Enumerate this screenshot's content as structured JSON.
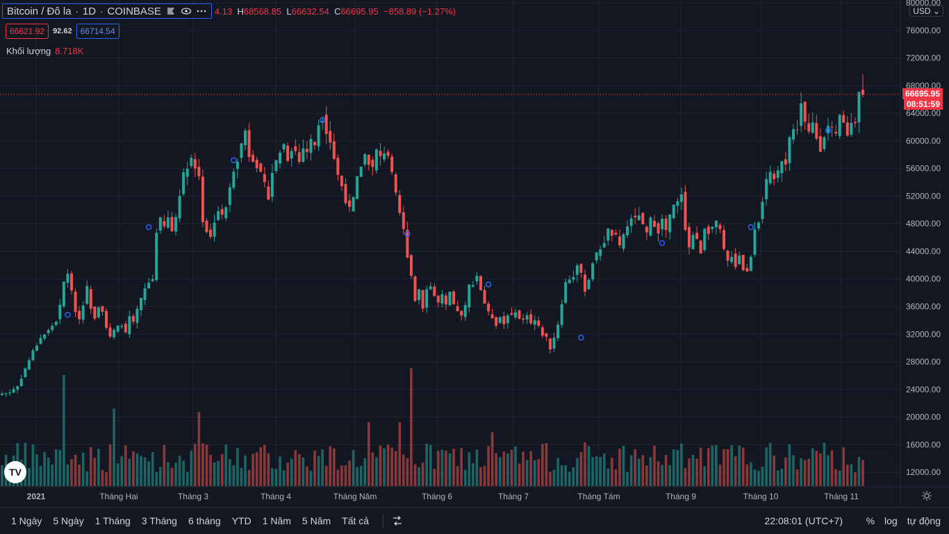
{
  "legend": {
    "symbol": "Bitcoin / Đô la",
    "interval": "1D",
    "exchange": "COINBASE",
    "open_tail": "4.13",
    "high_label": "H",
    "high": "68568.85",
    "low_label": "L",
    "low": "66632.54",
    "close_label": "C",
    "close": "66695.95",
    "change": "−858.89 (−1.27%)",
    "bid": "66621.92",
    "spread": "92.62",
    "ask": "66714.54",
    "volume_label": "Khối lượng",
    "volume_value": "8.718K"
  },
  "currency": "USD",
  "last_price_badge": "66695.95",
  "countdown": "08:51:59",
  "range_buttons": [
    "1 Ngày",
    "5 Ngày",
    "1 Tháng",
    "3 Tháng",
    "6 tháng",
    "YTD",
    "1 Năm",
    "5 Năm",
    "Tất cả"
  ],
  "clock": "22:08:01 (UTC+7)",
  "scale_buttons": {
    "percent": "%",
    "log": "log",
    "auto": "tự động"
  },
  "colors": {
    "up": "#26a69a",
    "down": "#ef5350",
    "bg": "#131722",
    "grid": "#1f2430",
    "accent": "#2962ff"
  },
  "chart_data": {
    "type": "candlestick",
    "y_ticks": [
      "80000.00",
      "76000.00",
      "72000.00",
      "68000.00",
      "64000.00",
      "60000.00",
      "56000.00",
      "52000.00",
      "48000.00",
      "44000.00",
      "40000.00",
      "36000.00",
      "32000.00",
      "28000.00",
      "24000.00",
      "20000.00",
      "16000.00",
      "12000.00"
    ],
    "ylim": [
      10000,
      80000
    ],
    "x_ticks": [
      "2021",
      "Tháng Hai",
      "Tháng 3",
      "Tháng 4",
      "Tháng Năm",
      "Tháng 6",
      "Tháng 7",
      "Tháng Tám",
      "Tháng 9",
      "Tháng 10",
      "Tháng 11"
    ],
    "last_price": 66695.95,
    "anchors": [
      [
        0,
        23400
      ],
      [
        2,
        23600
      ],
      [
        4,
        24500
      ],
      [
        6,
        27000
      ],
      [
        8,
        29500
      ],
      [
        10,
        31500
      ],
      [
        12,
        32500
      ],
      [
        14,
        34000
      ],
      [
        15,
        36000
      ],
      [
        16,
        39500
      ],
      [
        17,
        41000
      ],
      [
        18,
        38000
      ],
      [
        19,
        35500
      ],
      [
        20,
        34200
      ],
      [
        21,
        36500
      ],
      [
        22,
        38700
      ],
      [
        23,
        36000
      ],
      [
        24,
        34500
      ],
      [
        25,
        36200
      ],
      [
        26,
        35500
      ],
      [
        27,
        33000
      ],
      [
        28,
        31500
      ],
      [
        29,
        32500
      ],
      [
        30,
        33000
      ],
      [
        31,
        33500
      ],
      [
        32,
        32000
      ],
      [
        33,
        34500
      ],
      [
        34,
        33500
      ],
      [
        35,
        35500
      ],
      [
        36,
        37000
      ],
      [
        37,
        38500
      ],
      [
        38,
        39500
      ],
      [
        39,
        40000
      ],
      [
        40,
        47000
      ],
      [
        41,
        48500
      ],
      [
        42,
        47500
      ],
      [
        43,
        48800
      ],
      [
        44,
        47000
      ],
      [
        45,
        49000
      ],
      [
        46,
        52500
      ],
      [
        47,
        55000
      ],
      [
        48,
        56500
      ],
      [
        49,
        57500
      ],
      [
        50,
        56000
      ],
      [
        51,
        55000
      ],
      [
        52,
        48500
      ],
      [
        53,
        47000
      ],
      [
        54,
        46000
      ],
      [
        55,
        48500
      ],
      [
        56,
        50000
      ],
      [
        57,
        49000
      ],
      [
        58,
        50500
      ],
      [
        59,
        53000
      ],
      [
        60,
        56000
      ],
      [
        61,
        57500
      ],
      [
        62,
        59500
      ],
      [
        63,
        61500
      ],
      [
        64,
        58000
      ],
      [
        65,
        57500
      ],
      [
        66,
        56500
      ],
      [
        67,
        55000
      ],
      [
        68,
        53500
      ],
      [
        69,
        52000
      ],
      [
        70,
        55500
      ],
      [
        71,
        57000
      ],
      [
        72,
        58500
      ],
      [
        73,
        59500
      ],
      [
        74,
        57500
      ],
      [
        75,
        59000
      ],
      [
        76,
        58500
      ],
      [
        77,
        57000
      ],
      [
        78,
        59000
      ],
      [
        79,
        58500
      ],
      [
        80,
        60000
      ],
      [
        81,
        59500
      ],
      [
        82,
        62500
      ],
      [
        83,
        63500
      ],
      [
        84,
        61500
      ],
      [
        85,
        60000
      ],
      [
        86,
        57500
      ],
      [
        87,
        55000
      ],
      [
        88,
        53500
      ],
      [
        89,
        51500
      ],
      [
        90,
        50000
      ],
      [
        91,
        51500
      ],
      [
        92,
        54500
      ],
      [
        93,
        56500
      ],
      [
        94,
        58000
      ],
      [
        95,
        57000
      ],
      [
        96,
        56000
      ],
      [
        97,
        58500
      ],
      [
        98,
        57500
      ],
      [
        99,
        58500
      ],
      [
        100,
        58000
      ],
      [
        101,
        55000
      ],
      [
        102,
        52000
      ],
      [
        103,
        49500
      ],
      [
        104,
        47000
      ],
      [
        105,
        43500
      ],
      [
        106,
        40500
      ],
      [
        107,
        37000
      ],
      [
        108,
        38500
      ],
      [
        109,
        36000
      ],
      [
        110,
        38500
      ],
      [
        111,
        39000
      ],
      [
        112,
        37500
      ],
      [
        113,
        36500
      ],
      [
        114,
        37500
      ],
      [
        115,
        36000
      ],
      [
        116,
        38000
      ],
      [
        117,
        36000
      ],
      [
        118,
        35500
      ],
      [
        119,
        34500
      ],
      [
        120,
        36000
      ],
      [
        121,
        39000
      ],
      [
        122,
        39500
      ],
      [
        123,
        40500
      ],
      [
        124,
        38500
      ],
      [
        125,
        36500
      ],
      [
        126,
        35000
      ],
      [
        127,
        34500
      ],
      [
        128,
        33500
      ],
      [
        129,
        34500
      ],
      [
        130,
        33500
      ],
      [
        131,
        35000
      ],
      [
        132,
        34500
      ],
      [
        133,
        35500
      ],
      [
        134,
        34200
      ],
      [
        135,
        34000
      ],
      [
        136,
        35000
      ],
      [
        137,
        33500
      ],
      [
        138,
        34000
      ],
      [
        139,
        33000
      ],
      [
        140,
        32000
      ],
      [
        141,
        31500
      ],
      [
        142,
        30000
      ],
      [
        143,
        31500
      ],
      [
        144,
        33500
      ],
      [
        145,
        36500
      ],
      [
        146,
        39500
      ],
      [
        147,
        40000
      ],
      [
        148,
        40500
      ],
      [
        149,
        42000
      ],
      [
        150,
        40500
      ],
      [
        151,
        38500
      ],
      [
        152,
        40000
      ],
      [
        153,
        42500
      ],
      [
        154,
        43500
      ],
      [
        155,
        44500
      ],
      [
        156,
        45500
      ],
      [
        157,
        47000
      ],
      [
        158,
        46500
      ],
      [
        159,
        46000
      ],
      [
        160,
        44500
      ],
      [
        161,
        46500
      ],
      [
        162,
        47500
      ],
      [
        163,
        49000
      ],
      [
        164,
        48500
      ],
      [
        165,
        49500
      ],
      [
        166,
        47500
      ],
      [
        167,
        46500
      ],
      [
        168,
        48500
      ],
      [
        169,
        48000
      ],
      [
        170,
        47000
      ],
      [
        171,
        48500
      ],
      [
        172,
        47000
      ],
      [
        173,
        49000
      ],
      [
        174,
        50500
      ],
      [
        175,
        51000
      ],
      [
        176,
        52500
      ],
      [
        177,
        47500
      ],
      [
        178,
        44500
      ],
      [
        179,
        46500
      ],
      [
        180,
        45500
      ],
      [
        181,
        44000
      ],
      [
        182,
        47500
      ],
      [
        183,
        47000
      ],
      [
        184,
        47500
      ],
      [
        185,
        48000
      ],
      [
        186,
        47000
      ],
      [
        187,
        44000
      ],
      [
        188,
        42500
      ],
      [
        189,
        43500
      ],
      [
        190,
        42000
      ],
      [
        191,
        43500
      ],
      [
        192,
        41500
      ],
      [
        193,
        41000
      ],
      [
        194,
        43500
      ],
      [
        195,
        47500
      ],
      [
        196,
        48500
      ],
      [
        197,
        51500
      ],
      [
        198,
        54000
      ],
      [
        199,
        55000
      ],
      [
        200,
        54500
      ],
      [
        201,
        55500
      ],
      [
        202,
        57500
      ],
      [
        203,
        57000
      ],
      [
        204,
        60500
      ],
      [
        205,
        61500
      ],
      [
        206,
        62000
      ],
      [
        207,
        65500
      ],
      [
        208,
        62500
      ],
      [
        209,
        61000
      ],
      [
        210,
        62500
      ],
      [
        211,
        60500
      ],
      [
        212,
        59000
      ],
      [
        213,
        61000
      ],
      [
        214,
        62000
      ],
      [
        215,
        61500
      ],
      [
        216,
        60500
      ],
      [
        217,
        63500
      ],
      [
        218,
        62500
      ],
      [
        219,
        61000
      ],
      [
        220,
        62500
      ],
      [
        221,
        63000
      ],
      [
        222,
        67500
      ],
      [
        223,
        66696
      ]
    ]
  }
}
